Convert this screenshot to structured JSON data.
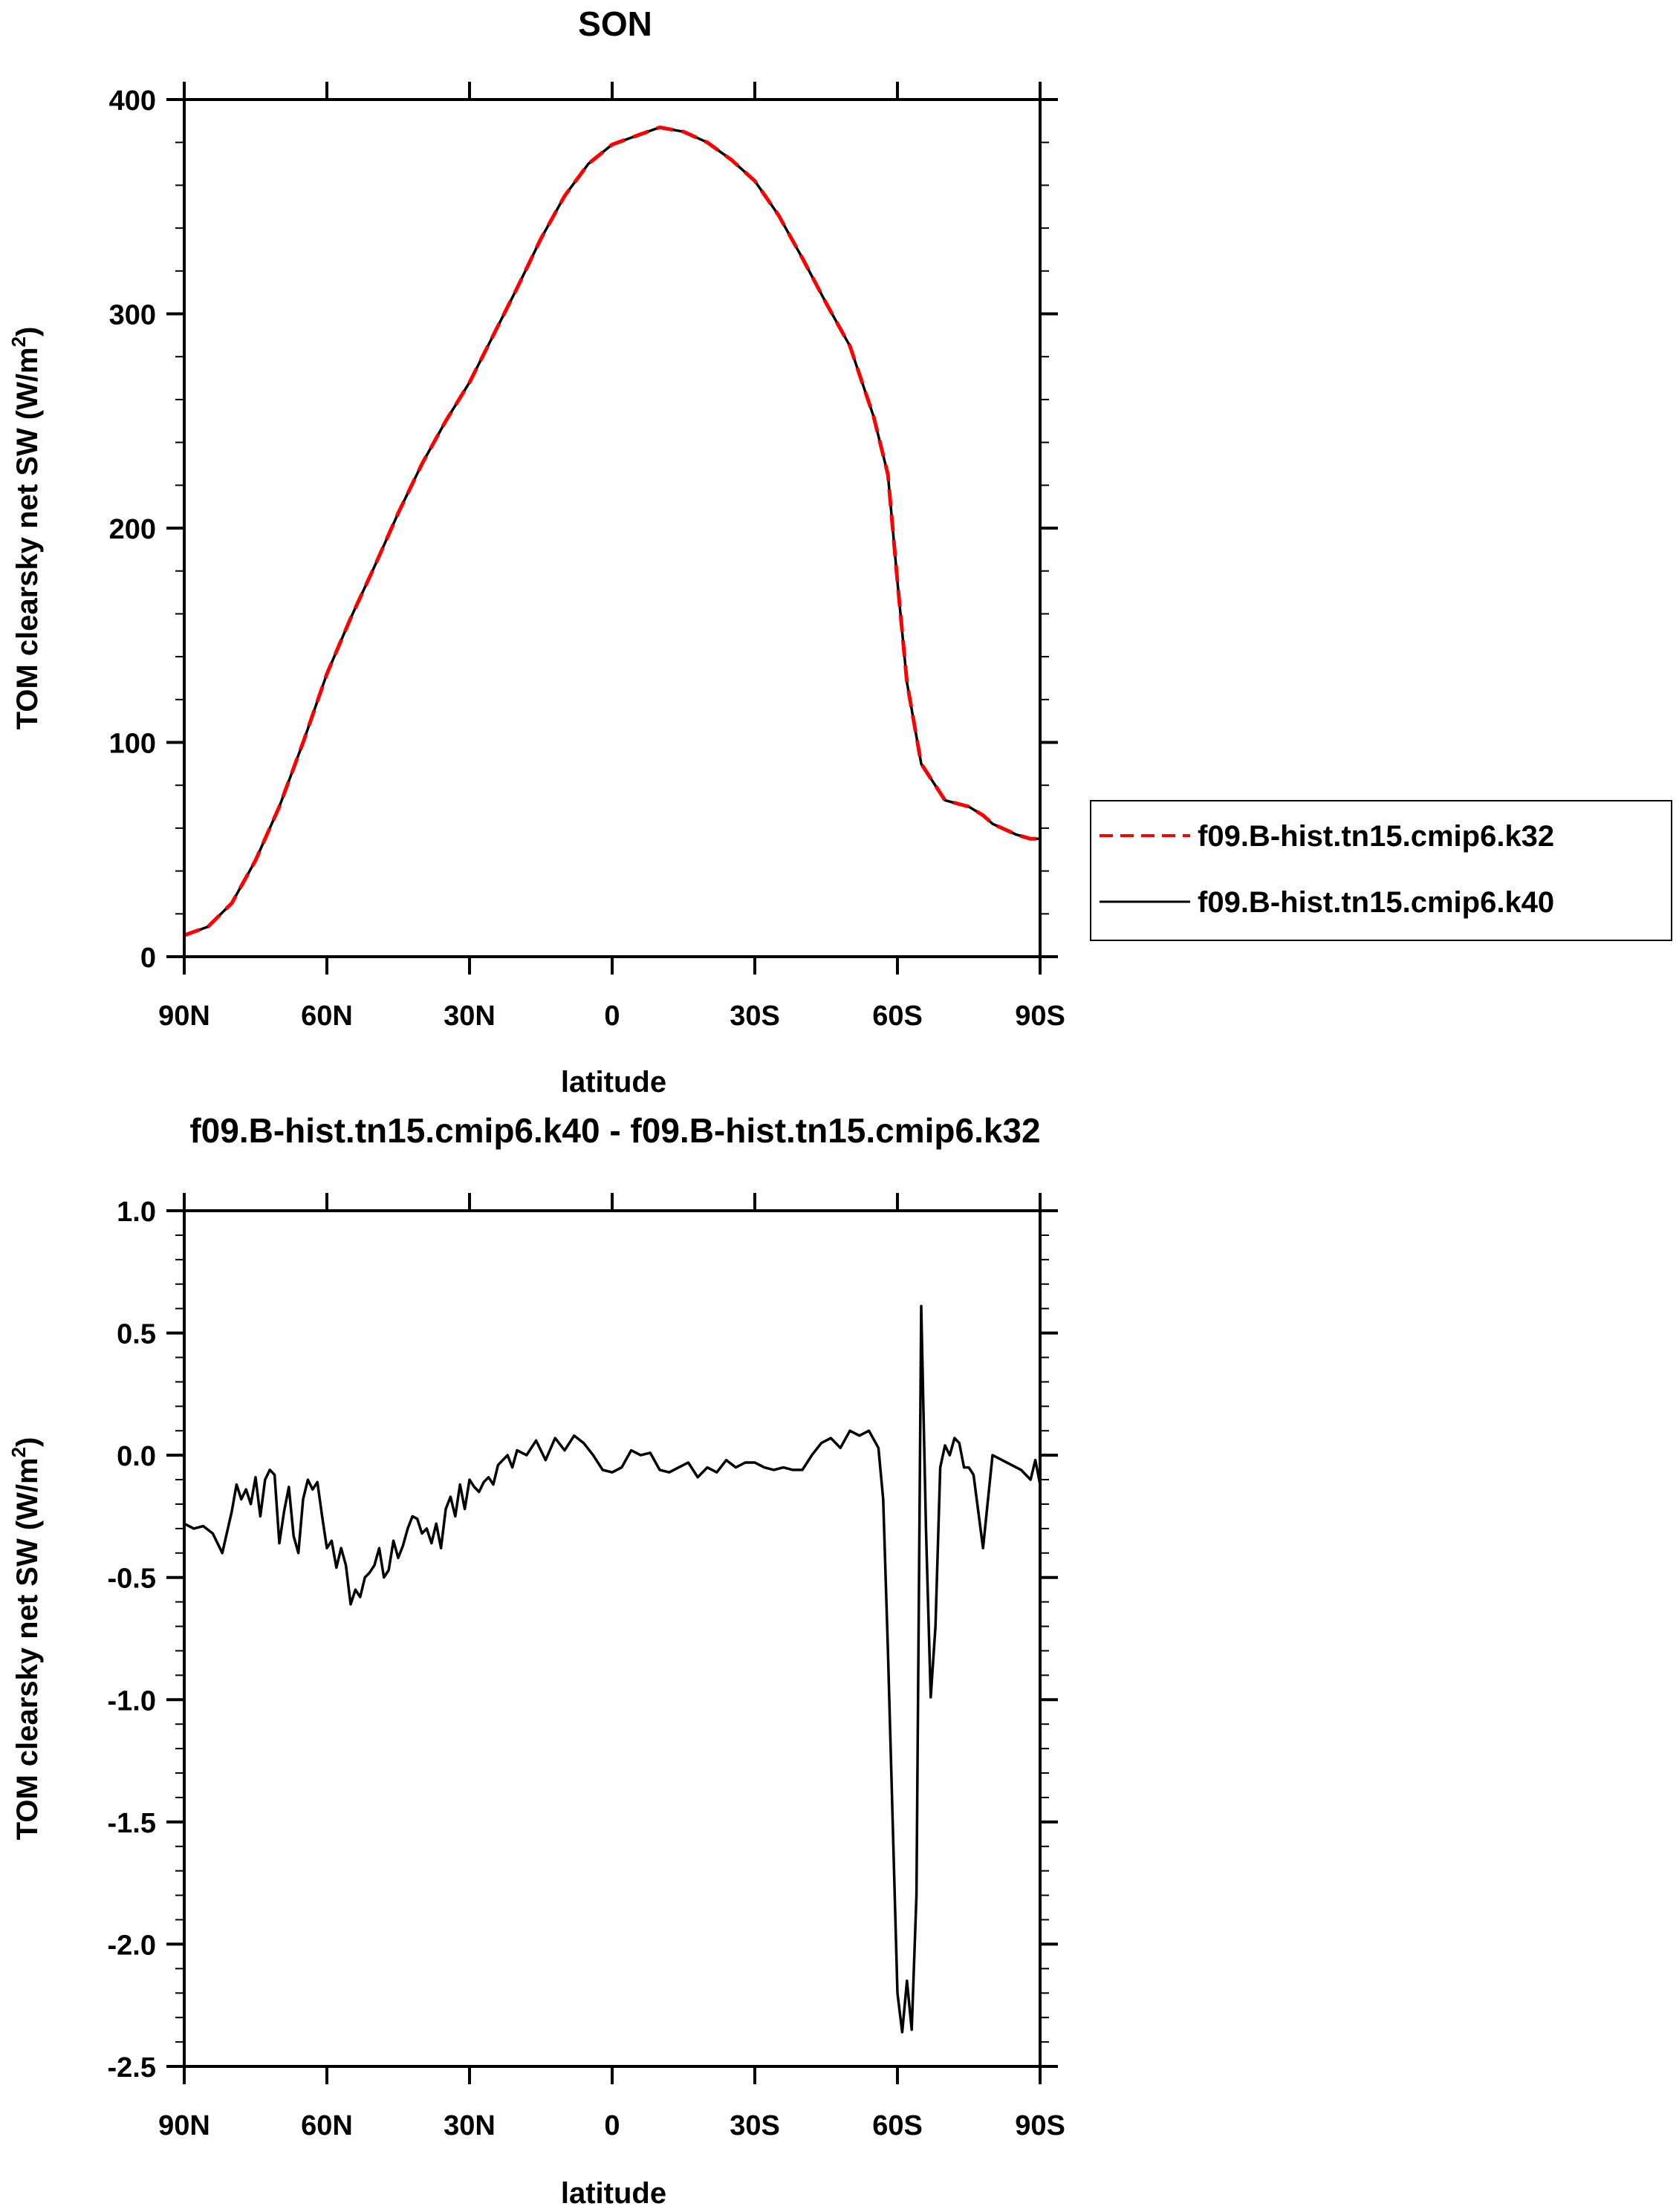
{
  "chart_data": [
    {
      "type": "line",
      "title": "SON",
      "xlabel": "latitude",
      "ylabel": "TOM clearsky net SW (W/m",
      "ylabel_sup": "2",
      "ylabel_close": ")",
      "xlim": [
        90,
        -90
      ],
      "ylim": [
        0,
        400
      ],
      "x_ticks": [
        {
          "value": 90,
          "label": "90N"
        },
        {
          "value": 60,
          "label": "60N"
        },
        {
          "value": 30,
          "label": "30N"
        },
        {
          "value": 0,
          "label": "0"
        },
        {
          "value": -30,
          "label": "30S"
        },
        {
          "value": -60,
          "label": "60S"
        },
        {
          "value": -90,
          "label": "90S"
        }
      ],
      "y_ticks": [
        {
          "value": 0,
          "label": "0"
        },
        {
          "value": 100,
          "label": "100"
        },
        {
          "value": 200,
          "label": "200"
        },
        {
          "value": 300,
          "label": "300"
        },
        {
          "value": 400,
          "label": "400"
        }
      ],
      "legend_position": "right",
      "x": [
        90,
        85,
        80,
        75,
        70,
        65,
        60,
        55,
        50,
        45,
        40,
        35,
        30,
        25,
        20,
        15,
        10,
        5,
        0,
        -5,
        -10,
        -15,
        -20,
        -25,
        -30,
        -35,
        -40,
        -45,
        -50,
        -55,
        -58,
        -60,
        -62,
        -65,
        -70,
        -75,
        -78,
        -80,
        -85,
        -88,
        -90
      ],
      "series": [
        {
          "name": "f09.B-hist.tn15.cmip6.k32",
          "color": "#ff0000",
          "dash": "dashed",
          "values": [
            10,
            14,
            25,
            45,
            70,
            100,
            132,
            158,
            182,
            207,
            230,
            250,
            268,
            290,
            312,
            335,
            355,
            370,
            379,
            383,
            387,
            385,
            380,
            372,
            362,
            346,
            326,
            305,
            285,
            252,
            225,
            175,
            128,
            90,
            73,
            70,
            66,
            62,
            57,
            55,
            55
          ]
        },
        {
          "name": "f09.B-hist.tn15.cmip6.k40",
          "color": "#000000",
          "dash": "solid",
          "values": [
            10,
            14,
            25,
            45,
            70,
            100,
            132,
            158,
            182,
            207,
            230,
            250,
            268,
            290,
            312,
            335,
            355,
            370,
            379,
            383,
            387,
            385,
            380,
            372,
            362,
            346,
            326,
            305,
            285,
            252,
            225,
            175,
            128,
            90,
            73,
            70,
            66,
            62,
            57,
            55,
            55
          ]
        }
      ]
    },
    {
      "type": "line",
      "title": "f09.B-hist.tn15.cmip6.k40 - f09.B-hist.tn15.cmip6.k32",
      "xlabel": "latitude",
      "ylabel": "TOM clearsky net SW (W/m",
      "ylabel_sup": "2",
      "ylabel_close": ")",
      "xlim": [
        90,
        -90
      ],
      "ylim": [
        -2.5,
        1.0
      ],
      "x_ticks": [
        {
          "value": 90,
          "label": "90N"
        },
        {
          "value": 60,
          "label": "60N"
        },
        {
          "value": 30,
          "label": "30N"
        },
        {
          "value": 0,
          "label": "0"
        },
        {
          "value": -30,
          "label": "30S"
        },
        {
          "value": -60,
          "label": "60S"
        },
        {
          "value": -90,
          "label": "90S"
        }
      ],
      "y_ticks": [
        {
          "value": 1.0,
          "label": "1.0"
        },
        {
          "value": 0.5,
          "label": "0.5"
        },
        {
          "value": 0.0,
          "label": "0.0"
        },
        {
          "value": -0.5,
          "label": "-0.5"
        },
        {
          "value": -1.0,
          "label": "-1.0"
        },
        {
          "value": -1.5,
          "label": "-1.5"
        },
        {
          "value": -2.0,
          "label": "-2.0"
        },
        {
          "value": -2.5,
          "label": "-2.5"
        }
      ],
      "x": [
        90,
        88,
        86,
        84,
        82,
        80,
        79,
        78,
        77,
        76,
        75,
        74,
        73,
        72,
        71,
        70,
        69,
        68,
        67,
        66,
        65,
        64,
        63,
        62,
        61,
        60,
        59,
        58,
        57,
        56,
        55,
        54,
        53,
        52,
        51,
        50,
        49,
        48,
        47,
        46,
        45,
        44,
        43,
        42,
        41,
        40,
        39,
        38,
        37,
        36,
        35,
        34,
        33,
        32,
        31,
        30,
        29,
        28,
        27,
        26,
        25,
        24,
        23,
        22,
        21,
        20,
        18,
        16,
        14,
        12,
        10,
        8,
        6,
        4,
        2,
        0,
        -2,
        -4,
        -6,
        -8,
        -10,
        -12,
        -14,
        -16,
        -18,
        -20,
        -22,
        -24,
        -26,
        -28,
        -30,
        -32,
        -34,
        -36,
        -38,
        -40,
        -42,
        -44,
        -46,
        -48,
        -50,
        -52,
        -54,
        -56,
        -57,
        -58,
        -59,
        -60,
        -61,
        -62,
        -63,
        -64,
        -65,
        -66,
        -67,
        -68,
        -69,
        -70,
        -71,
        -72,
        -73,
        -74,
        -75,
        -76,
        -78,
        -80,
        -82,
        -84,
        -86,
        -88,
        -89,
        -90
      ],
      "series": [
        {
          "name": "",
          "color": "#000000",
          "dash": "solid",
          "values": [
            -0.28,
            -0.3,
            -0.29,
            -0.32,
            -0.4,
            -0.23,
            -0.12,
            -0.18,
            -0.14,
            -0.2,
            -0.09,
            -0.25,
            -0.1,
            -0.06,
            -0.08,
            -0.36,
            -0.23,
            -0.13,
            -0.33,
            -0.4,
            -0.18,
            -0.1,
            -0.14,
            -0.11,
            -0.25,
            -0.38,
            -0.35,
            -0.46,
            -0.38,
            -0.45,
            -0.61,
            -0.55,
            -0.58,
            -0.5,
            -0.48,
            -0.45,
            -0.38,
            -0.5,
            -0.47,
            -0.35,
            -0.42,
            -0.37,
            -0.3,
            -0.25,
            -0.26,
            -0.32,
            -0.3,
            -0.36,
            -0.28,
            -0.38,
            -0.22,
            -0.17,
            -0.25,
            -0.12,
            -0.22,
            -0.1,
            -0.13,
            -0.15,
            -0.11,
            -0.09,
            -0.12,
            -0.04,
            -0.02,
            0.0,
            -0.05,
            0.02,
            0.0,
            0.06,
            -0.02,
            0.07,
            0.02,
            0.08,
            0.05,
            0.0,
            -0.06,
            -0.07,
            -0.05,
            0.02,
            0.0,
            0.01,
            -0.06,
            -0.07,
            -0.05,
            -0.03,
            -0.09,
            -0.05,
            -0.07,
            -0.02,
            -0.05,
            -0.03,
            -0.03,
            -0.05,
            -0.06,
            -0.05,
            -0.06,
            -0.06,
            0.0,
            0.05,
            0.07,
            0.03,
            0.1,
            0.08,
            0.1,
            0.03,
            -0.18,
            -0.8,
            -1.5,
            -2.2,
            -2.36,
            -2.15,
            -2.35,
            -1.8,
            0.61,
            -0.3,
            -0.99,
            -0.7,
            -0.05,
            0.04,
            0.0,
            0.07,
            0.05,
            -0.05,
            -0.05,
            -0.08,
            -0.38,
            0.0,
            -0.02,
            -0.04,
            -0.06,
            -0.1,
            -0.02,
            -0.12
          ]
        }
      ]
    }
  ]
}
